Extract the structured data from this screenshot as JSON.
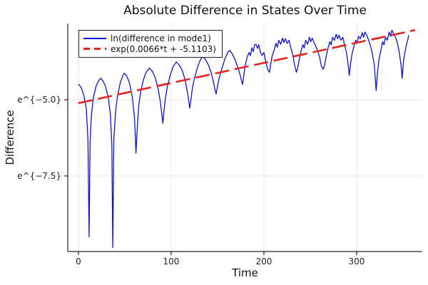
{
  "chart_data": {
    "type": "line",
    "title": "Absolute Difference in States Over Time",
    "axes": {
      "xlabel": "Time",
      "ylabel": "Difference",
      "xlim": [
        -11.5,
        370.8
      ],
      "ylim": [
        -9.98,
        -2.5
      ],
      "yscale": "log (ln labels)",
      "grid": true,
      "xticks": {
        "values": [
          0,
          100,
          200,
          300
        ],
        "labels": [
          "0",
          "100",
          "200",
          "300"
        ]
      },
      "yticks": {
        "values": [
          -5.0,
          -7.5
        ],
        "labels": [
          "e^{−5.0}",
          "e^{−7.5}"
        ]
      }
    },
    "colors": {
      "grid": "#e9e9e9",
      "axis": "#222222",
      "blue_series": "#0d11d6",
      "red_fit": "#e8231c",
      "background": "#ffffff"
    },
    "legend": {
      "position": "top-left",
      "entries": [
        {
          "label": "ln(difference in mode1)",
          "color": "#0d11d6",
          "style": "solid"
        },
        {
          "label": "exp(0.0066*t + -5.1103)",
          "color": "#e8231c",
          "style": "dashed"
        }
      ]
    },
    "fit": {
      "slope": 0.0066,
      "intercept": -5.1103
    },
    "series": [
      {
        "name": "ln(difference in mode1)",
        "slug": "blue-series-line",
        "color": "#0d11d6",
        "style": "solid",
        "points": [
          [
            0,
            -4.49
          ],
          [
            3,
            -4.6
          ],
          [
            6,
            -4.88
          ],
          [
            8.5,
            -5.3
          ],
          [
            10.3,
            -6.3
          ],
          [
            11.5,
            -9.5
          ],
          [
            12.6,
            -6.4
          ],
          [
            14,
            -5.5
          ],
          [
            16,
            -4.95
          ],
          [
            19,
            -4.55
          ],
          [
            22,
            -4.36
          ],
          [
            24.2,
            -4.3
          ],
          [
            26.5,
            -4.38
          ],
          [
            29,
            -4.55
          ],
          [
            32,
            -4.9
          ],
          [
            34.5,
            -5.5
          ],
          [
            36,
            -6.5
          ],
          [
            37,
            -9.85
          ],
          [
            38.2,
            -6.3
          ],
          [
            40,
            -5.4
          ],
          [
            42,
            -4.9
          ],
          [
            45,
            -4.45
          ],
          [
            48,
            -4.2
          ],
          [
            49.5,
            -4.13
          ],
          [
            52,
            -4.22
          ],
          [
            55,
            -4.45
          ],
          [
            58,
            -4.9
          ],
          [
            60.5,
            -5.6
          ],
          [
            62,
            -6.75
          ],
          [
            63.5,
            -5.9
          ],
          [
            65,
            -5.2
          ],
          [
            67,
            -4.75
          ],
          [
            70,
            -4.35
          ],
          [
            73,
            -4.1
          ],
          [
            76.5,
            -3.96
          ],
          [
            80,
            -4.08
          ],
          [
            83,
            -4.3
          ],
          [
            86,
            -4.65
          ],
          [
            88.5,
            -5.1
          ],
          [
            90,
            -5.5
          ],
          [
            91,
            -5.77
          ],
          [
            92.5,
            -5.3
          ],
          [
            94,
            -4.9
          ],
          [
            96,
            -4.55
          ],
          [
            99,
            -4.2
          ],
          [
            102,
            -3.92
          ],
          [
            105.5,
            -3.76
          ],
          [
            109,
            -3.88
          ],
          [
            112,
            -4.05
          ],
          [
            115,
            -4.35
          ],
          [
            117.5,
            -4.75
          ],
          [
            119,
            -5.05
          ],
          [
            120,
            -5.28
          ],
          [
            121.5,
            -4.95
          ],
          [
            123,
            -4.6
          ],
          [
            125,
            -4.3
          ],
          [
            128,
            -3.98
          ],
          [
            131,
            -3.72
          ],
          [
            134,
            -3.58
          ],
          [
            137,
            -3.68
          ],
          [
            140,
            -3.85
          ],
          [
            143,
            -4.1
          ],
          [
            145.5,
            -4.4
          ],
          [
            147.5,
            -4.7
          ],
          [
            148.5,
            -4.81
          ],
          [
            150,
            -4.55
          ],
          [
            152,
            -4.25
          ],
          [
            155,
            -3.95
          ],
          [
            158,
            -3.65
          ],
          [
            161,
            -3.45
          ],
          [
            163,
            -3.38
          ],
          [
            166,
            -3.5
          ],
          [
            169,
            -3.7
          ],
          [
            172,
            -3.95
          ],
          [
            174.5,
            -4.2
          ],
          [
            176,
            -4.4
          ],
          [
            177,
            -4.5
          ],
          [
            178.5,
            -4.15
          ],
          [
            180,
            -3.85
          ],
          [
            182,
            -3.6
          ],
          [
            184,
            -3.45
          ],
          [
            185.5,
            -3.55
          ],
          [
            187,
            -3.3
          ],
          [
            188.5,
            -3.42
          ],
          [
            190,
            -3.2
          ],
          [
            191.5,
            -3.18
          ],
          [
            193,
            -3.32
          ],
          [
            194.5,
            -3.2
          ],
          [
            196,
            -3.42
          ],
          [
            198,
            -3.55
          ],
          [
            200,
            -3.45
          ],
          [
            202,
            -3.75
          ],
          [
            204,
            -4.0
          ],
          [
            206,
            -4.1
          ],
          [
            207.5,
            -3.8
          ],
          [
            209,
            -3.55
          ],
          [
            211,
            -3.38
          ],
          [
            213,
            -3.15
          ],
          [
            214.5,
            -3.28
          ],
          [
            216,
            -3.05
          ],
          [
            218,
            -3.18
          ],
          [
            220,
            -2.98
          ],
          [
            221.5,
            -3.12
          ],
          [
            223,
            -3.0
          ],
          [
            225,
            -3.15
          ],
          [
            227,
            -3.05
          ],
          [
            229,
            -3.3
          ],
          [
            231,
            -3.5
          ],
          [
            233,
            -3.85
          ],
          [
            235,
            -4.1
          ],
          [
            236.5,
            -3.95
          ],
          [
            238,
            -3.7
          ],
          [
            240,
            -3.4
          ],
          [
            242,
            -3.2
          ],
          [
            243.5,
            -3.3
          ],
          [
            245,
            -3.05
          ],
          [
            247,
            -3.18
          ],
          [
            249,
            -2.95
          ],
          [
            250.5,
            -3.1
          ],
          [
            252,
            -2.98
          ],
          [
            254,
            -3.12
          ],
          [
            256,
            -3.25
          ],
          [
            258,
            -3.4
          ],
          [
            260,
            -3.6
          ],
          [
            262,
            -3.9
          ],
          [
            264,
            -4.0
          ],
          [
            265.5,
            -3.85
          ],
          [
            267,
            -3.6
          ],
          [
            269,
            -3.32
          ],
          [
            271,
            -3.1
          ],
          [
            272.5,
            -3.2
          ],
          [
            274,
            -2.95
          ],
          [
            276,
            -3.05
          ],
          [
            278,
            -2.85
          ],
          [
            279.5,
            -3.0
          ],
          [
            281,
            -2.88
          ],
          [
            283,
            -3.05
          ],
          [
            285,
            -2.95
          ],
          [
            287,
            -3.2
          ],
          [
            289,
            -3.45
          ],
          [
            291,
            -3.9
          ],
          [
            292,
            -4.2
          ],
          [
            293.5,
            -3.8
          ],
          [
            295,
            -3.5
          ],
          [
            297,
            -3.25
          ],
          [
            299,
            -3.05
          ],
          [
            300.5,
            -3.15
          ],
          [
            302,
            -2.92
          ],
          [
            304,
            -3.0
          ],
          [
            306,
            -2.8
          ],
          [
            307.5,
            -2.95
          ],
          [
            309,
            -2.78
          ],
          [
            311,
            -2.9
          ],
          [
            313,
            -3.05
          ],
          [
            315,
            -3.25
          ],
          [
            317,
            -3.5
          ],
          [
            319,
            -3.85
          ],
          [
            321,
            -4.7
          ],
          [
            322.5,
            -4.1
          ],
          [
            324,
            -3.7
          ],
          [
            326,
            -3.4
          ],
          [
            328,
            -3.1
          ],
          [
            329.5,
            -3.2
          ],
          [
            331,
            -2.95
          ],
          [
            333,
            -3.05
          ],
          [
            335,
            -2.78
          ],
          [
            336.5,
            -2.92
          ],
          [
            338,
            -2.72
          ],
          [
            340,
            -2.85
          ],
          [
            342,
            -2.95
          ],
          [
            344,
            -3.15
          ],
          [
            346,
            -3.45
          ],
          [
            348,
            -3.9
          ],
          [
            349,
            -4.3
          ],
          [
            350.5,
            -3.75
          ],
          [
            352,
            -3.45
          ],
          [
            354,
            -3.15
          ],
          [
            355.5,
            -3.0
          ],
          [
            356,
            -2.88
          ]
        ]
      },
      {
        "name": "exp(0.0066*t + -5.1103)",
        "slug": "red-fit-line",
        "color": "#e8231c",
        "style": "dashed",
        "points": [
          [
            0,
            -5.1103
          ],
          [
            363,
            -2.7145
          ]
        ]
      }
    ]
  }
}
